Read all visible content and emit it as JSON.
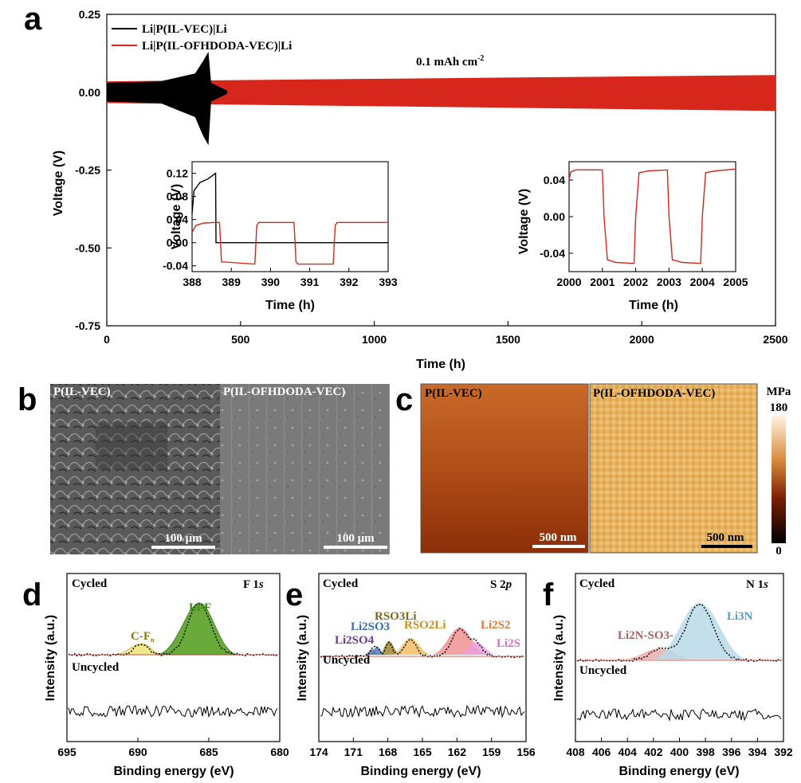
{
  "panel_a": {
    "letter": "a",
    "annotation": "0.1 mAh cm",
    "annotation_sup": "-2",
    "xlabel": "Time (h)",
    "ylabel": "Voltage (V)",
    "xticks": [
      "0",
      "500",
      "1000",
      "1500",
      "2000",
      "2500"
    ],
    "yticks": [
      "0.25",
      "0.00",
      "-0.25",
      "-0.50",
      "-0.75"
    ],
    "legend": [
      "Li|P(IL-VEC)|Li",
      "Li|P(IL-OFHDODA-VEC)|Li"
    ],
    "colors": {
      "black": "#000000",
      "red": "#d7261b"
    },
    "inset1": {
      "xlabel": "Time (h)",
      "ylabel": "Voltage (V)",
      "xticks": [
        "388",
        "389",
        "390",
        "391",
        "392",
        "393"
      ],
      "yticks": [
        "0.12",
        "0.08",
        "0.04",
        "0.00",
        "-0.04"
      ]
    },
    "inset2": {
      "xlabel": "Time (h)",
      "ylabel": "Voltage (V)",
      "xticks": [
        "2000",
        "2001",
        "2002",
        "2003",
        "2004",
        "2005"
      ],
      "yticks": [
        "0.04",
        "0.00",
        "-0.04"
      ]
    }
  },
  "panel_b": {
    "letter": "b",
    "left_label": "P(IL-VEC)",
    "right_label": "P(IL-OFHDODA-VEC)",
    "scalebar_left": "100 μm",
    "scalebar_right": "100 μm"
  },
  "panel_c": {
    "letter": "c",
    "left_label": "P(IL-VEC)",
    "right_label": "P(IL-OFHDODA-VEC)",
    "scalebar_left": "500 nm",
    "scalebar_right": "500 nm",
    "colorbar_unit": "MPa",
    "colorbar_max": "180",
    "colorbar_min": "0"
  },
  "panel_d": {
    "letter": "d",
    "element": "F 1",
    "orbital": "s",
    "cycled": "Cycled",
    "uncycled": "Uncycled",
    "xlabel": "Binding energy (eV)",
    "ylabel": "Intensity (a.u.)",
    "xticks": [
      "695",
      "690",
      "685",
      "680"
    ],
    "peaks": [
      "C-F",
      "Li-F"
    ],
    "peak_sub": "n"
  },
  "panel_e": {
    "letter": "e",
    "element": "S 2",
    "orbital": "p",
    "cycled": "Cycled",
    "uncycled": "Uncycled",
    "xlabel": "Binding energy (eV)",
    "ylabel": "Intensity (a.u.)",
    "xticks": [
      "174",
      "171",
      "168",
      "165",
      "162",
      "159",
      "156"
    ],
    "peaks": [
      "Li2SO4",
      "Li2SO3",
      "RSO3Li",
      "RSO2Li",
      "Li2S2",
      "Li2S"
    ]
  },
  "panel_f": {
    "letter": "f",
    "element": "N 1",
    "orbital": "s",
    "cycled": "Cycled",
    "uncycled": "Uncycled",
    "xlabel": "Binding energy (eV)",
    "ylabel": "Intensity (a.u.)",
    "xticks": [
      "408",
      "406",
      "404",
      "402",
      "400",
      "398",
      "396",
      "394",
      "392"
    ],
    "peaks": [
      "Li2N-SO3-",
      "Li3N"
    ]
  },
  "chart_data": [
    {
      "type": "line",
      "panel": "a",
      "xlabel": "Time (h)",
      "ylabel": "Voltage (V)",
      "xlim": [
        0,
        2500
      ],
      "ylim": [
        -0.75,
        0.25
      ],
      "series": [
        {
          "name": "Li|P(IL-VEC)|Li",
          "x": [
            0,
            200,
            330,
            360,
            380,
            390,
            450
          ],
          "upper": [
            0.03,
            0.035,
            0.06,
            0.1,
            0.13,
            0.03,
            0.005
          ],
          "lower": [
            -0.03,
            -0.035,
            -0.08,
            -0.14,
            -0.17,
            -0.03,
            -0.005
          ]
        },
        {
          "name": "Li|P(IL-OFHDODA-VEC)|Li",
          "x": [
            0,
            2500
          ],
          "upper": [
            0.035,
            0.055
          ],
          "lower": [
            -0.035,
            -0.06
          ]
        }
      ]
    },
    {
      "type": "line",
      "panel": "a-inset-1",
      "xlim": [
        388,
        393
      ],
      "ylim": [
        -0.05,
        0.14
      ],
      "series": [
        {
          "x": [
            388,
            388.05,
            388.2,
            388.4,
            388.6,
            388.61,
            393
          ],
          "y": [
            0.05,
            0.09,
            0.104,
            0.11,
            0.12,
            0.0,
            0.0
          ]
        },
        {
          "x": [
            388,
            388.1,
            388.3,
            388.6,
            388.7,
            388.75,
            389.6,
            389.65,
            389.7,
            390.6,
            390.65,
            390.7,
            391.6,
            391.65,
            391.7,
            392.55,
            392.6,
            392.65,
            393
          ],
          "y": [
            0.018,
            0.03,
            0.034,
            0.035,
            0.035,
            -0.033,
            -0.037,
            0.03,
            0.035,
            0.035,
            -0.033,
            -0.037,
            -0.037,
            0.03,
            0.035,
            0.035,
            0.035,
            0.035,
            0.035
          ]
        }
      ]
    },
    {
      "type": "line",
      "panel": "a-inset-2",
      "xlim": [
        2000,
        2005
      ],
      "ylim": [
        -0.06,
        0.06
      ],
      "series": [
        {
          "x": [
            2000,
            2000.05,
            2000.2,
            2000.5,
            2001.0,
            2001.05,
            2001.15,
            2001.4,
            2001.95,
            2002.0,
            2002.1,
            2002.4,
            2002.95,
            2003.0,
            2003.1,
            2003.4,
            2003.95,
            2004.0,
            2004.1,
            2004.4,
            2005
          ],
          "y": [
            0.04,
            0.049,
            0.051,
            0.051,
            0.051,
            0.0,
            -0.047,
            -0.05,
            -0.051,
            0.0,
            0.048,
            0.05,
            0.051,
            0.0,
            -0.047,
            -0.05,
            -0.051,
            0.0,
            0.048,
            0.05,
            0.052
          ]
        }
      ]
    },
    {
      "type": "area",
      "panel": "d",
      "xlim": [
        695,
        680
      ],
      "series": [
        {
          "name": "C-Fn",
          "center": 689.5,
          "height": 0.1,
          "width": 1.3
        },
        {
          "name": "Li-F",
          "center": 685.3,
          "height": 0.6,
          "width": 1.5
        }
      ]
    },
    {
      "type": "area",
      "panel": "e",
      "xlim": [
        174,
        156
      ],
      "series": [
        {
          "name": "Li2SO4",
          "center": 169.3,
          "height": 0.05
        },
        {
          "name": "Li2SO3",
          "center": 168.6,
          "height": 0.08
        },
        {
          "name": "RSO3Li",
          "center": 167.8,
          "height": 0.14
        },
        {
          "name": "RSO2Li",
          "center": 166.3,
          "height": 0.2
        },
        {
          "name": "Li2S2",
          "center": 161.9,
          "height": 0.42
        },
        {
          "name": "Li2S",
          "center": 160.6,
          "height": 0.17
        }
      ]
    },
    {
      "type": "area",
      "panel": "f",
      "xlim": [
        408,
        392
      ],
      "series": [
        {
          "name": "Li2N-SO3-",
          "center": 401.3,
          "height": 0.12
        },
        {
          "name": "Li3N",
          "center": 398.5,
          "height": 0.75
        }
      ]
    }
  ]
}
